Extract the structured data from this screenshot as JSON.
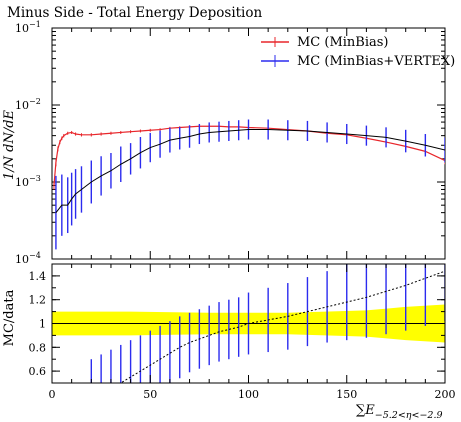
{
  "chart_data": [
    {
      "type": "line",
      "title": "Minus Side - Total Energy Deposition",
      "ylabel": "1/N dN/dE",
      "yscale": "log",
      "xlim": [
        0,
        200
      ],
      "ylim": [
        0.0001,
        0.1
      ],
      "y_ticks": [
        {
          "value": 0.1,
          "label": "10",
          "exp": "−1"
        },
        {
          "value": 0.01,
          "label": "10",
          "exp": "−2"
        },
        {
          "value": 0.001,
          "label": "10",
          "exp": "−3"
        },
        {
          "value": 0.0001,
          "label": "10",
          "exp": "−4"
        }
      ],
      "legend_position": "top-right",
      "series": [
        {
          "name": "MC (MinBias)",
          "color": "#e8262b",
          "x": [
            1,
            2,
            3,
            4,
            5,
            6,
            8,
            10,
            12,
            15,
            20,
            25,
            30,
            35,
            40,
            45,
            50,
            55,
            60,
            65,
            70,
            75,
            80,
            85,
            90,
            95,
            100,
            110,
            120,
            130,
            140,
            150,
            160,
            170,
            180,
            190,
            200
          ],
          "y": [
            0.0009,
            0.0018,
            0.0027,
            0.0033,
            0.0037,
            0.004,
            0.0043,
            0.0044,
            0.0042,
            0.0041,
            0.0041,
            0.0042,
            0.0043,
            0.0044,
            0.0045,
            0.0046,
            0.0047,
            0.0048,
            0.005,
            0.0051,
            0.0052,
            0.0053,
            0.0053,
            0.0053,
            0.0052,
            0.0052,
            0.0051,
            0.005,
            0.0048,
            0.0046,
            0.0043,
            0.0041,
            0.0037,
            0.0033,
            0.0029,
            0.0025,
            0.0019
          ],
          "y_err": [
            0.0001,
            0.0002,
            0.0002,
            0.0002,
            0.0002,
            0.0002,
            0.0002,
            0.0002,
            0.0002,
            0.0002,
            0.0002,
            0.0002,
            0.0002,
            0.0002,
            0.0002,
            0.0002,
            0.0002,
            0.0002,
            0.0002,
            0.0002,
            0.0002,
            0.0002,
            0.0002,
            0.0002,
            0.0002,
            0.0002,
            0.0002,
            0.0002,
            0.0002,
            0.0002,
            0.0002,
            0.0002,
            0.0002,
            0.0002,
            0.0002,
            0.0002,
            0.0002
          ]
        },
        {
          "name": "MC (MinBias+VERTEX)",
          "color": "#2b2bef",
          "x": [
            2,
            5,
            8,
            10,
            12,
            15,
            20,
            25,
            30,
            35,
            40,
            45,
            50,
            55,
            60,
            65,
            70,
            75,
            80,
            85,
            90,
            95,
            100,
            110,
            120,
            130,
            140,
            150,
            160,
            170,
            180,
            190,
            200
          ],
          "y": [
            0.0004,
            0.0005,
            0.0005,
            0.0006,
            0.0007,
            0.0008,
            0.001,
            0.0012,
            0.0014,
            0.0017,
            0.002,
            0.0024,
            0.0028,
            0.0031,
            0.0035,
            0.0037,
            0.0039,
            0.0042,
            0.0044,
            0.0045,
            0.0046,
            0.0047,
            0.0048,
            0.0048,
            0.0047,
            0.0046,
            0.0044,
            0.0042,
            0.004,
            0.0038,
            0.0034,
            0.003,
            0.0026
          ],
          "y_err_factor": [
            3.0,
            2.5,
            2.3,
            2.2,
            2.1,
            2.0,
            1.9,
            1.8,
            1.7,
            1.7,
            1.6,
            1.6,
            1.55,
            1.5,
            1.45,
            1.4,
            1.4,
            1.35,
            1.35,
            1.35,
            1.35,
            1.35,
            1.35,
            1.35,
            1.35,
            1.35,
            1.35,
            1.35,
            1.35,
            1.35,
            1.4,
            1.4,
            1.45
          ]
        }
      ]
    },
    {
      "type": "line",
      "ylabel": "MC/data",
      "xlabel": "∑E",
      "xlabel_sub": "−5.2<η<−2.9",
      "xlim": [
        0,
        200
      ],
      "ylim": [
        0.5,
        1.5
      ],
      "x_ticks": [
        0,
        50,
        100,
        150,
        200
      ],
      "y_ticks": [
        0.6,
        0.8,
        1,
        1.2,
        1.4
      ],
      "reference_line": 1,
      "band": {
        "color": "#ffff00",
        "x": [
          0,
          40,
          80,
          120,
          160,
          180,
          200
        ],
        "low": [
          0.9,
          0.9,
          0.91,
          0.91,
          0.89,
          0.86,
          0.84
        ],
        "high": [
          1.1,
          1.1,
          1.09,
          1.09,
          1.11,
          1.14,
          1.16
        ]
      },
      "series": [
        {
          "name": "MC (MinBias+VERTEX)",
          "color": "#2b2bef",
          "x": [
            20,
            25,
            30,
            35,
            40,
            45,
            50,
            55,
            60,
            65,
            70,
            75,
            80,
            85,
            90,
            95,
            100,
            110,
            120,
            130,
            140,
            150,
            160,
            170,
            180,
            190,
            200
          ],
          "y": [
            0.35,
            0.4,
            0.45,
            0.5,
            0.55,
            0.6,
            0.65,
            0.7,
            0.75,
            0.8,
            0.84,
            0.87,
            0.9,
            0.93,
            0.95,
            0.97,
            1.0,
            1.03,
            1.06,
            1.1,
            1.14,
            1.18,
            1.22,
            1.27,
            1.32,
            1.38,
            1.44
          ],
          "y_err": [
            0.35,
            0.34,
            0.33,
            0.32,
            0.31,
            0.3,
            0.29,
            0.28,
            0.27,
            0.26,
            0.25,
            0.25,
            0.25,
            0.25,
            0.25,
            0.25,
            0.26,
            0.27,
            0.28,
            0.29,
            0.3,
            0.32,
            0.34,
            0.36,
            0.38,
            0.4,
            0.42
          ]
        }
      ]
    }
  ]
}
